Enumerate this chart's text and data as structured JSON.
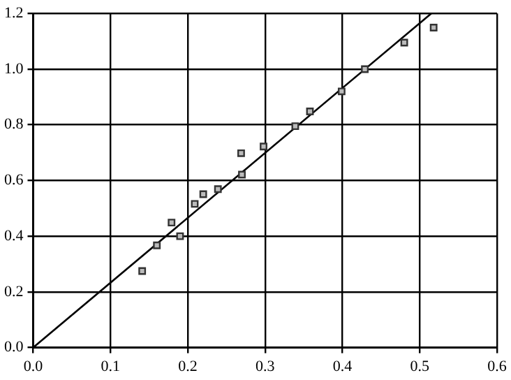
{
  "chart_data": {
    "type": "scatter",
    "grid": true,
    "legend": false,
    "xlim": [
      0,
      0.6
    ],
    "xticks": [
      {
        "value": 0,
        "label": "0.0"
      },
      0.1,
      0.2,
      0.3,
      0.4,
      0.5,
      0.6
    ],
    "ylim": [
      0,
      1.2
    ],
    "yticks": [
      {
        "value": 0,
        "label": "0.0"
      },
      0.2,
      0.4,
      0.6,
      0.8,
      {
        "value": 1,
        "label": "1.0"
      },
      1.2
    ],
    "series": [
      {
        "type": "scatter",
        "marker": "square",
        "color": "#333333",
        "x": [
          0.141,
          0.16,
          0.179,
          0.19,
          0.209,
          0.22,
          0.239,
          0.269,
          0.27,
          0.298,
          0.339,
          0.358,
          0.399,
          0.429,
          0.48,
          0.518
        ],
        "values": [
          0.275,
          0.367,
          0.449,
          0.4,
          0.516,
          0.551,
          0.569,
          0.698,
          0.621,
          0.722,
          0.795,
          0.848,
          0.92,
          1.0,
          1.095,
          1.149
        ]
      },
      {
        "type": "line",
        "marker": "none",
        "color": "#000000",
        "x": [
          0,
          0.515
        ],
        "values": [
          0,
          1.2
        ]
      }
    ]
  }
}
